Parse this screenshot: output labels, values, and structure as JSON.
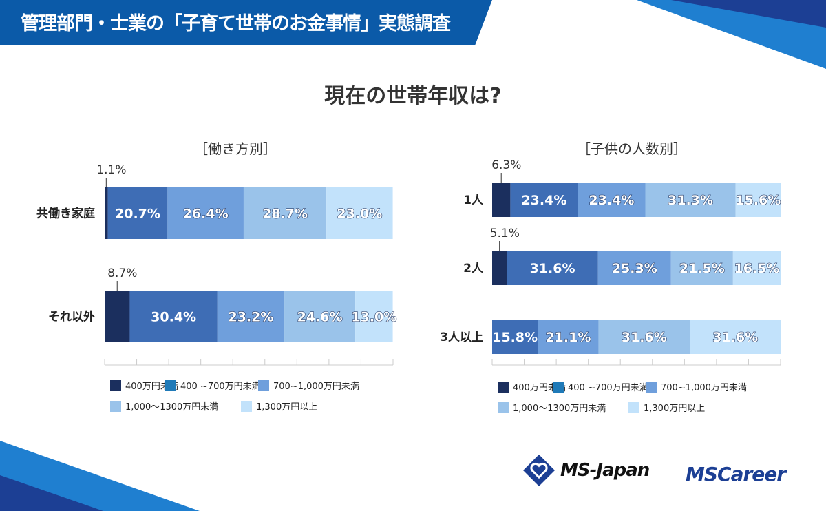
{
  "header": {
    "title": "管理部門・士業の「子育て世帯のお金事情」実態調査"
  },
  "main_title": "現在の世帯年収は?",
  "colors": [
    "#1b2f5e",
    "#3e6db5",
    "#6f9fdc",
    "#9ac3ea",
    "#c2e2fb"
  ],
  "legend_colors": [
    "#1b2f5e",
    "#1f7ab8",
    "#6f9fdc",
    "#9ac3ea",
    "#c2e2fb"
  ],
  "legend": [
    "400万円未満",
    "400 ~700万円未満",
    "700~1,000万円未満",
    "1,000～1300万円未満",
    "1,300万円以上"
  ],
  "chart_data": [
    {
      "type": "bar",
      "orientation": "horizontal",
      "stacked": true,
      "title": "［働き方別］",
      "unit": "%",
      "xlim": [
        0,
        100
      ],
      "categories": [
        "共働き家庭",
        "それ以外"
      ],
      "series": [
        {
          "name": "400万円未満",
          "values": [
            1.1,
            8.7
          ]
        },
        {
          "name": "400 ~700万円未満",
          "values": [
            20.7,
            30.4
          ]
        },
        {
          "name": "700~1,000万円未満",
          "values": [
            26.4,
            23.2
          ]
        },
        {
          "name": "1,000～1300万円未満",
          "values": [
            28.7,
            24.6
          ]
        },
        {
          "name": "1,300万円以上",
          "values": [
            23.0,
            13.0
          ]
        }
      ]
    },
    {
      "type": "bar",
      "orientation": "horizontal",
      "stacked": true,
      "title": "［子供の人数別］",
      "unit": "%",
      "xlim": [
        0,
        100
      ],
      "categories": [
        "1人",
        "2人",
        "3人以上"
      ],
      "series": [
        {
          "name": "400万円未満",
          "values": [
            6.3,
            5.1,
            0
          ]
        },
        {
          "name": "400 ~700万円未満",
          "values": [
            23.4,
            31.6,
            15.8
          ]
        },
        {
          "name": "700~1,000万円未満",
          "values": [
            23.4,
            25.3,
            21.1
          ]
        },
        {
          "name": "1,000～1300万円未満",
          "values": [
            31.3,
            21.5,
            31.6
          ]
        },
        {
          "name": "1,300万円以上",
          "values": [
            15.6,
            16.5,
            31.6
          ]
        }
      ]
    }
  ],
  "logos": {
    "ms_japan": "MS-Japan",
    "ms_career": "MSCareer"
  }
}
